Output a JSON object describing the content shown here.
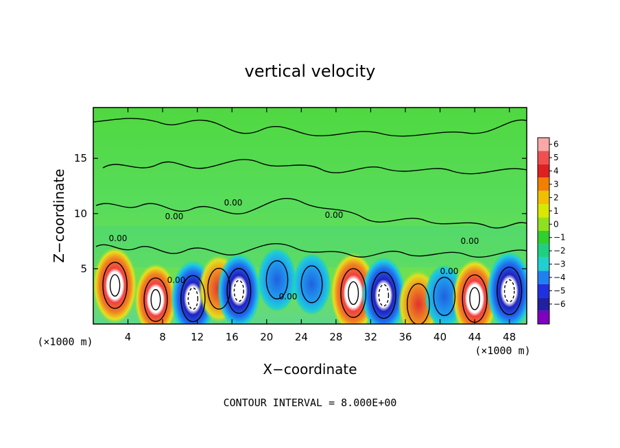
{
  "chart_data": {
    "type": "heatmap",
    "title": "vertical velocity",
    "xlabel": "X−coordinate",
    "ylabel": "Z−coordinate",
    "x_unit_left": "(×1000 m)",
    "x_unit_right": "(×1000 m)",
    "footer": "CONTOUR INTERVAL = 8.000E+00",
    "contour_labels": [
      "0.00",
      "0.00",
      "0.00",
      "0.00",
      "0.00",
      "0.00",
      "0.00",
      "0.00"
    ],
    "xlim": [
      0,
      50
    ],
    "ylim": [
      0,
      19.6
    ],
    "x_ticks": [
      4,
      8,
      12,
      16,
      20,
      24,
      28,
      32,
      36,
      40,
      44,
      48
    ],
    "y_ticks": [
      5,
      10,
      15
    ],
    "colorbar": {
      "levels": [
        6,
        5,
        4,
        3,
        2,
        1,
        0,
        -1,
        -2,
        -3,
        -4,
        -5,
        -6
      ],
      "colors": [
        "#f7a8a8",
        "#f04f4f",
        "#e02020",
        "#f08000",
        "#f0c000",
        "#d8e800",
        "#90e020",
        "#30d030",
        "#20d080",
        "#20d0d0",
        "#2080f0",
        "#2030e0",
        "#2020a0",
        "#8000c0"
      ]
    },
    "cells": [
      {
        "x": 2.5,
        "z": 3.5,
        "w": 10
      },
      {
        "x": 7.2,
        "z": 2.2,
        "w": 8
      },
      {
        "x": 11.5,
        "z": 2.3,
        "w": -10
      },
      {
        "x": 14.5,
        "z": 3.2,
        "w": 6
      },
      {
        "x": 16.8,
        "z": 3.0,
        "w": -9
      },
      {
        "x": 21.2,
        "z": 4.0,
        "w": -4
      },
      {
        "x": 25.2,
        "z": 3.6,
        "w": -3
      },
      {
        "x": 30.0,
        "z": 2.8,
        "w": 12
      },
      {
        "x": 33.5,
        "z": 2.6,
        "w": -10
      },
      {
        "x": 37.5,
        "z": 1.8,
        "w": 6
      },
      {
        "x": 40.5,
        "z": 2.5,
        "w": -4
      },
      {
        "x": 44.0,
        "z": 2.3,
        "w": 11
      },
      {
        "x": 48.0,
        "z": 3.0,
        "w": -11
      }
    ]
  }
}
